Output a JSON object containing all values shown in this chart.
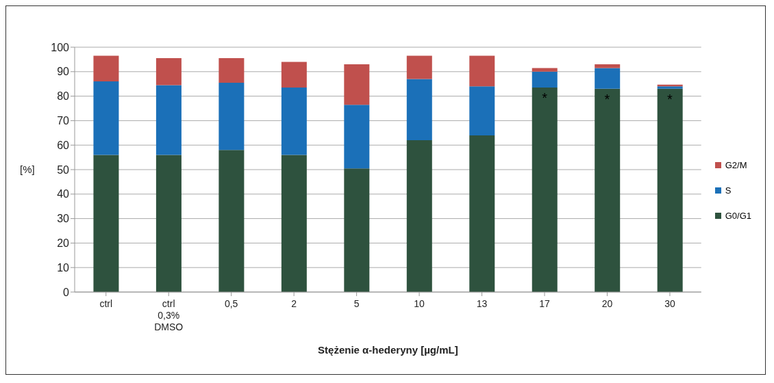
{
  "chart_data": {
    "type": "bar",
    "stacked": true,
    "xlabel": "Stężenie α-hederyny  [µg/mL]",
    "ylabel": "[%]",
    "categories": [
      "ctrl",
      "ctrl\n0,3%\nDMSO",
      "0,5",
      "2",
      "5",
      "10",
      "13",
      "17",
      "20",
      "30"
    ],
    "series": [
      {
        "name": "G0/G1",
        "color": "#2e523e",
        "values": [
          56,
          56,
          58,
          56,
          50.5,
          62,
          64,
          83.5,
          83,
          83
        ]
      },
      {
        "name": "S",
        "color": "#1b70b8",
        "values": [
          30,
          28.5,
          27.5,
          27.5,
          26,
          25,
          20,
          6.5,
          8.5,
          1
        ]
      },
      {
        "name": "G2/M",
        "color": "#c0504d",
        "values": [
          10.5,
          11,
          10,
          10.5,
          16.5,
          9.5,
          12.5,
          1.5,
          1.5,
          0.7
        ]
      }
    ],
    "ylim": [
      0,
      100
    ],
    "yticks": [
      0,
      10,
      20,
      30,
      40,
      50,
      60,
      70,
      80,
      90,
      100
    ],
    "grid": "y",
    "legend": "right",
    "annotations": [
      {
        "text": "*",
        "x": "17",
        "y": 83.5
      },
      {
        "text": "*",
        "x": "20",
        "y": 83
      },
      {
        "text": "*",
        "x": "30",
        "y": 83
      }
    ]
  }
}
